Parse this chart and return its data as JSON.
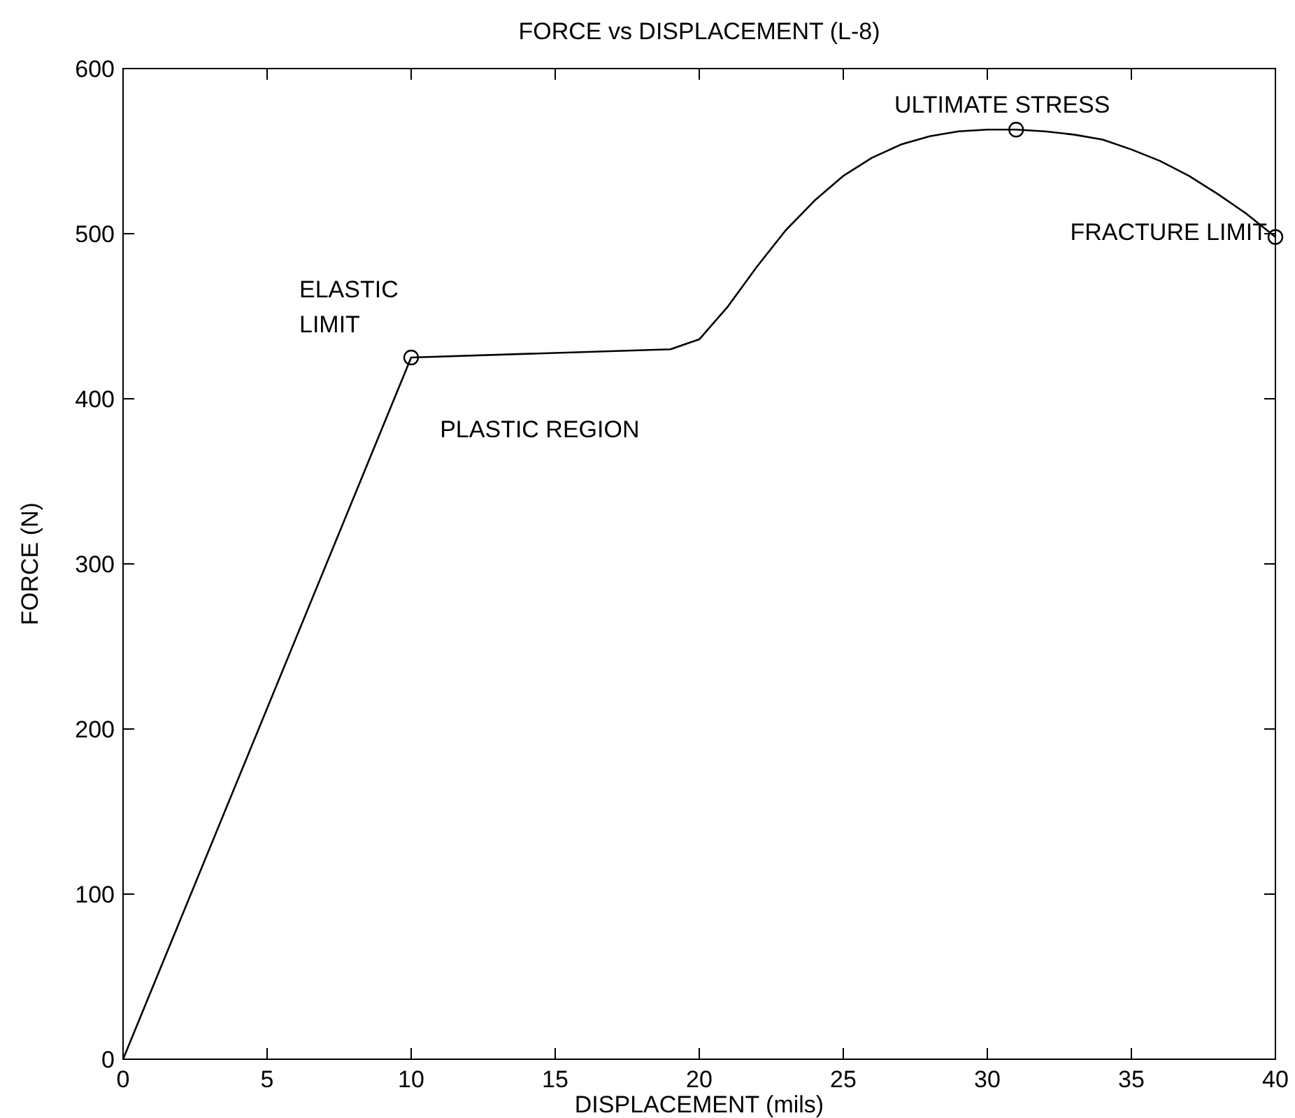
{
  "chart_data": {
    "type": "line",
    "title": "FORCE vs DISPLACEMENT (L-8)",
    "xlabel": "DISPLACEMENT  (mils)",
    "ylabel": "FORCE (N)",
    "xlim": [
      0,
      40
    ],
    "ylim": [
      0,
      600
    ],
    "xticks": [
      0,
      5,
      10,
      15,
      20,
      25,
      30,
      35,
      40
    ],
    "yticks": [
      0,
      100,
      200,
      300,
      400,
      500,
      600
    ],
    "grid": false,
    "series": [
      {
        "color": "#000000",
        "marker": "none",
        "x": [
          0,
          10,
          19,
          20,
          21,
          22,
          23,
          24,
          25,
          26,
          27,
          28,
          29,
          30,
          31,
          32,
          33,
          34,
          35,
          36,
          37,
          38,
          39,
          40
        ],
        "values": [
          0,
          425,
          430,
          436,
          456,
          480,
          502,
          520,
          535,
          546,
          554,
          559,
          562,
          563,
          563,
          562,
          560,
          557,
          551,
          544,
          535,
          524,
          512,
          498
        ]
      },
      {
        "type": "scatter",
        "color": "#000000",
        "marker": "circle",
        "x": [
          10,
          31,
          40
        ],
        "values": [
          425,
          563,
          498
        ]
      }
    ],
    "annotations": [
      {
        "text": "ELASTIC\nLIMIT",
        "x": 10,
        "y": 425
      },
      "PLASTIC REGION",
      {
        "text": "ULTIMATE STRESS",
        "x": 31,
        "y": 563
      },
      {
        "text": "FRACTURE LIMIT",
        "x": 40,
        "y": 498
      }
    ]
  }
}
